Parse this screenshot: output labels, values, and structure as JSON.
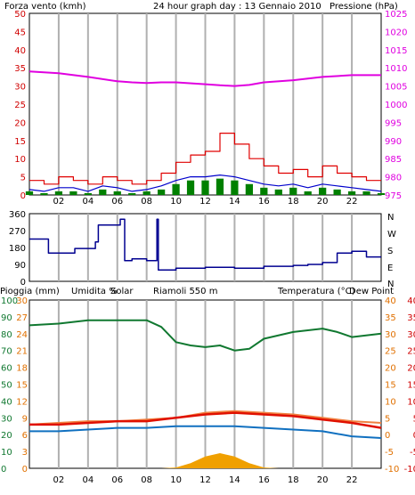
{
  "header": {
    "title": "24 hour graph day : 13 Gennaio 2010",
    "wind_label": "Forza vento (kmh)",
    "pressure_label": "Pressione (hPa)"
  },
  "direction_labels": [
    "N",
    "W",
    "S",
    "E",
    "N"
  ],
  "bottom_labels": {
    "rain": "Pioggia (mm)",
    "humidity": "Umidita %",
    "solar": "Solar",
    "riamoli": "Riamoli 550 m",
    "temperature": "Temperatura (°C)",
    "dewpoint": "Dew Point"
  },
  "colors": {
    "frame": "#000000",
    "grid": "#b0b0b0",
    "wind_gust": "#e00000",
    "wind_avg": "#0000cc",
    "wind_bars": "#008000",
    "pressure": "#e000e0",
    "direction": "#000090",
    "humidity": "#107830",
    "temperature": "#e01000",
    "riamoli": "#f08040",
    "dewpoint": "#1070c0",
    "solar": "#f0a000",
    "orange_labels": "#e07000",
    "red_labels": "#d00000"
  },
  "chart_data": [
    {
      "type": "line",
      "title": "24 hour graph day : 13 Gennaio 2010",
      "xlabel": "",
      "x_ticks": [
        "02",
        "04",
        "06",
        "08",
        "10",
        "12",
        "14",
        "16",
        "18",
        "20",
        "22"
      ],
      "xlim": [
        0,
        24
      ],
      "ylabel": "Forza vento (kmh)",
      "ylim": [
        0,
        50
      ],
      "y_ticks": [
        0,
        5,
        10,
        15,
        20,
        25,
        30,
        35,
        40,
        45,
        50
      ],
      "y2label": "Pressione (hPa)",
      "y2lim": [
        975,
        1025
      ],
      "y2_ticks": [
        975,
        980,
        985,
        990,
        995,
        1000,
        1005,
        1010,
        1015,
        1020,
        1025
      ],
      "grid": true,
      "series": [
        {
          "axis": "right",
          "x": [
            0,
            2,
            4,
            6,
            7,
            8,
            9,
            10,
            12,
            13,
            14,
            15,
            16,
            18,
            20,
            22,
            24
          ],
          "values": [
            1009,
            1008.5,
            1007.5,
            1006.3,
            1006,
            1005.8,
            1006,
            1006,
            1005.5,
            1005.2,
            1005,
            1005.3,
            1006,
            1006.6,
            1007.5,
            1008,
            1008
          ]
        },
        {
          "axis": "left",
          "x": [
            0,
            1,
            2,
            3,
            4,
            5,
            6,
            7,
            8,
            9,
            10,
            11,
            12,
            13,
            14,
            15,
            16,
            17,
            18,
            19,
            20,
            21,
            22,
            23,
            24
          ],
          "values": [
            4,
            3,
            5,
            4,
            3,
            5,
            4,
            3,
            4,
            6,
            9,
            11,
            12,
            17,
            14,
            10,
            8,
            6,
            7,
            5,
            8,
            6,
            5,
            4,
            4
          ]
        },
        {
          "axis": "left",
          "x": [
            0,
            1,
            2,
            3,
            4,
            5,
            6,
            7,
            8,
            9,
            10,
            11,
            12,
            13,
            14,
            15,
            16,
            17,
            18,
            19,
            20,
            21,
            22,
            23,
            24
          ],
          "values": [
            1.5,
            1,
            2,
            2,
            1,
            2.5,
            2,
            1,
            1.5,
            2.5,
            4,
            5,
            5,
            5.5,
            5,
            4,
            3,
            2.5,
            3,
            2,
            3,
            2.5,
            2,
            1.5,
            1
          ]
        },
        {
          "axis": "left",
          "x": [
            0,
            1,
            2,
            3,
            4,
            5,
            6,
            7,
            8,
            9,
            10,
            11,
            12,
            13,
            14,
            15,
            16,
            17,
            18,
            19,
            20,
            21,
            22,
            23,
            24
          ],
          "values": [
            1,
            0.5,
            1,
            1,
            0.5,
            1.5,
            1,
            0.5,
            1,
            1.5,
            3,
            4,
            4,
            4.5,
            4,
            3,
            2,
            1.5,
            2,
            1,
            2,
            1.5,
            1,
            1,
            0.5
          ]
        }
      ]
    },
    {
      "type": "line",
      "title": "",
      "x_ticks": [
        "02",
        "04",
        "06",
        "08",
        "10",
        "12",
        "14",
        "16",
        "18",
        "20",
        "22"
      ],
      "xlim": [
        0,
        24
      ],
      "ylim": [
        0,
        360
      ],
      "y_ticks": [
        0,
        90,
        180,
        270,
        360
      ],
      "grid": true,
      "series": [
        {
          "x": [
            0,
            1.2,
            1.3,
            3.0,
            3.1,
            4.5,
            4.7,
            6.2,
            6.5,
            7,
            8,
            8.7,
            8.8,
            10,
            12,
            14,
            16,
            18,
            19,
            20,
            21,
            22,
            23,
            24
          ],
          "values": [
            225,
            225,
            150,
            150,
            175,
            210,
            300,
            330,
            110,
            120,
            110,
            330,
            60,
            70,
            75,
            70,
            80,
            85,
            90,
            100,
            150,
            160,
            130,
            130
          ]
        }
      ]
    },
    {
      "type": "line",
      "title": "",
      "x_ticks": [
        "02",
        "04",
        "06",
        "08",
        "10",
        "12",
        "14",
        "16",
        "18",
        "20",
        "22"
      ],
      "xlim": [
        0,
        24
      ],
      "ylim": [
        0,
        100
      ],
      "y_ticks": [
        0,
        10,
        20,
        30,
        40,
        50,
        60,
        70,
        80,
        90,
        100
      ],
      "y_tick_labels": [
        "0",
        "10",
        "20",
        "30",
        "40",
        "50",
        "60",
        "70",
        "80",
        "90",
        "100"
      ],
      "y1_mid_labels": [
        "3",
        "6",
        "9",
        "12",
        "15",
        "18",
        "21",
        "24",
        "27",
        "30"
      ],
      "y2lim": [
        -10,
        40
      ],
      "y2_ticks": [
        -10,
        -5,
        0,
        5,
        10,
        15,
        20,
        25,
        30,
        35,
        40
      ],
      "grid": true,
      "series": [
        {
          "name": "Umidita %",
          "x": [
            0,
            2,
            4,
            6,
            8,
            9,
            10,
            11,
            12,
            13,
            14,
            15,
            16,
            18,
            20,
            21,
            22,
            24
          ],
          "values": [
            85,
            86,
            88,
            88,
            88,
            84,
            75,
            73,
            72,
            73,
            70,
            71,
            77,
            81,
            83,
            81,
            78,
            80
          ]
        },
        {
          "name": "Temperatura (°C)",
          "axis": "right",
          "x": [
            0,
            2,
            4,
            6,
            8,
            10,
            12,
            14,
            16,
            18,
            20,
            22,
            24
          ],
          "values": [
            3,
            3,
            3.5,
            4,
            4,
            5,
            6,
            6.5,
            6,
            5.5,
            4.5,
            3.5,
            2
          ]
        },
        {
          "name": "Riamoli 550 m",
          "axis": "right",
          "x": [
            0,
            2,
            4,
            6,
            8,
            10,
            12,
            14,
            16,
            18,
            20,
            22,
            24
          ],
          "values": [
            3,
            3.5,
            4,
            4,
            4.5,
            5,
            6.5,
            7,
            6.5,
            6,
            5,
            4,
            3.5
          ]
        },
        {
          "name": "Dew Point",
          "axis": "right",
          "x": [
            0,
            2,
            4,
            6,
            8,
            10,
            12,
            14,
            16,
            18,
            20,
            22,
            24
          ],
          "values": [
            1,
            1,
            1.5,
            2,
            2,
            2.5,
            2.5,
            2.5,
            2,
            1.5,
            1,
            -0.5,
            -1
          ]
        },
        {
          "name": "Solar",
          "x": [
            0,
            8,
            9,
            10,
            11,
            12,
            13,
            14,
            15,
            16,
            17,
            24
          ],
          "values": [
            0,
            0,
            0,
            0.5,
            3,
            7,
            9,
            7,
            3,
            0.5,
            0,
            0
          ]
        }
      ]
    }
  ]
}
